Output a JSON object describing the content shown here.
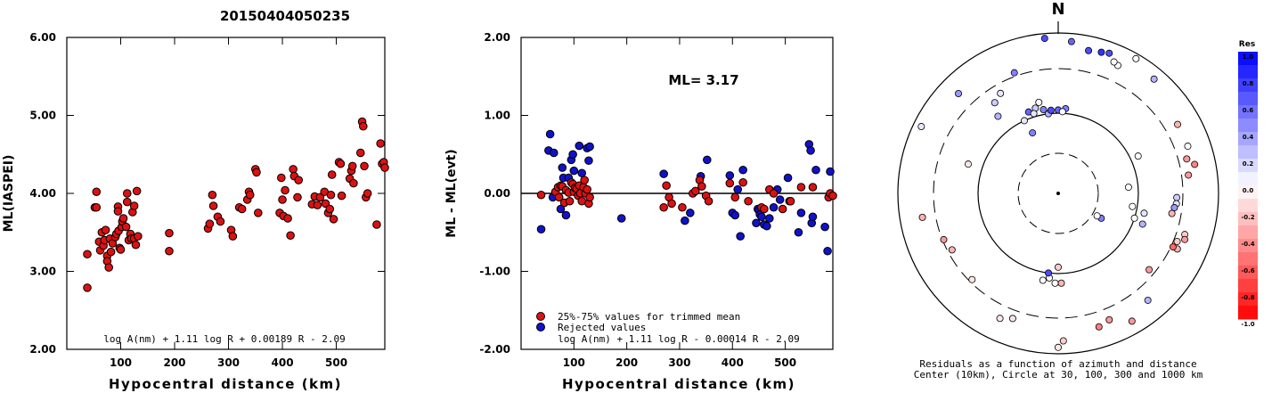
{
  "title": "20150404050235",
  "chart_data": [
    {
      "type": "scatter",
      "xlabel": "Hypocentral distance (km)",
      "ylabel": "ML(IASPEI)",
      "xlim": [
        0,
        590
      ],
      "ylim": [
        2.0,
        6.0
      ],
      "xticks": [
        100,
        200,
        300,
        400,
        500
      ],
      "yticks": [
        "2.00",
        "3.00",
        "4.00",
        "5.00",
        "6.00"
      ],
      "formula": "log A(nm) + 1.11 log R + 0.00189 R - 2.09",
      "color": "#dd1111",
      "points": [
        [
          38,
          2.79
        ],
        [
          38,
          3.22
        ],
        [
          52,
          3.82
        ],
        [
          55,
          4.02
        ],
        [
          55,
          3.82
        ],
        [
          60,
          3.38
        ],
        [
          62,
          3.27
        ],
        [
          65,
          3.5
        ],
        [
          68,
          3.33
        ],
        [
          70,
          3.4
        ],
        [
          72,
          3.53
        ],
        [
          75,
          3.2
        ],
        [
          75,
          3.13
        ],
        [
          78,
          3.05
        ],
        [
          80,
          3.42
        ],
        [
          82,
          3.25
        ],
        [
          85,
          3.36
        ],
        [
          90,
          3.44
        ],
        [
          92,
          3.48
        ],
        [
          95,
          3.83
        ],
        [
          95,
          3.77
        ],
        [
          96,
          3.52
        ],
        [
          98,
          3.3
        ],
        [
          100,
          3.28
        ],
        [
          102,
          3.57
        ],
        [
          103,
          3.64
        ],
        [
          105,
          3.68
        ],
        [
          110,
          3.57
        ],
        [
          112,
          3.89
        ],
        [
          112,
          4.0
        ],
        [
          115,
          3.4
        ],
        [
          118,
          3.48
        ],
        [
          120,
          3.42
        ],
        [
          122,
          3.76
        ],
        [
          125,
          3.84
        ],
        [
          125,
          3.42
        ],
        [
          128,
          3.34
        ],
        [
          130,
          4.03
        ],
        [
          132,
          3.45
        ],
        [
          190,
          3.49
        ],
        [
          190,
          3.26
        ],
        [
          262,
          3.55
        ],
        [
          265,
          3.61
        ],
        [
          270,
          3.98
        ],
        [
          272,
          3.84
        ],
        [
          280,
          3.7
        ],
        [
          285,
          3.64
        ],
        [
          305,
          3.53
        ],
        [
          308,
          3.45
        ],
        [
          320,
          3.82
        ],
        [
          325,
          3.8
        ],
        [
          335,
          3.92
        ],
        [
          338,
          4.02
        ],
        [
          340,
          3.98
        ],
        [
          350,
          4.31
        ],
        [
          352,
          4.27
        ],
        [
          355,
          3.75
        ],
        [
          395,
          3.75
        ],
        [
          398,
          4.2
        ],
        [
          400,
          3.92
        ],
        [
          402,
          3.71
        ],
        [
          405,
          4.04
        ],
        [
          410,
          3.68
        ],
        [
          415,
          3.46
        ],
        [
          420,
          4.31
        ],
        [
          422,
          4.22
        ],
        [
          428,
          3.95
        ],
        [
          430,
          4.17
        ],
        [
          455,
          3.86
        ],
        [
          460,
          3.96
        ],
        [
          465,
          3.85
        ],
        [
          470,
          3.95
        ],
        [
          478,
          4.02
        ],
        [
          480,
          3.87
        ],
        [
          485,
          3.75
        ],
        [
          488,
          3.8
        ],
        [
          490,
          3.98
        ],
        [
          492,
          4.24
        ],
        [
          495,
          3.67
        ],
        [
          505,
          4.4
        ],
        [
          508,
          4.38
        ],
        [
          510,
          3.97
        ],
        [
          525,
          4.19
        ],
        [
          528,
          4.29
        ],
        [
          530,
          4.35
        ],
        [
          532,
          4.13
        ],
        [
          545,
          4.52
        ],
        [
          548,
          4.92
        ],
        [
          550,
          4.86
        ],
        [
          552,
          4.35
        ],
        [
          555,
          3.95
        ],
        [
          558,
          4.0
        ],
        [
          575,
          3.6
        ],
        [
          582,
          4.64
        ],
        [
          585,
          4.38
        ],
        [
          588,
          4.4
        ],
        [
          590,
          4.33
        ]
      ]
    },
    {
      "type": "scatter",
      "xlabel": "Hypocentral distance (km)",
      "ylabel": "ML - ML(evt)",
      "xlim": [
        0,
        590
      ],
      "ylim": [
        -2.0,
        2.0
      ],
      "xticks": [
        100,
        200,
        300,
        400,
        500
      ],
      "yticks": [
        "-2.00",
        "-1.00",
        "0.00",
        "1.00",
        "2.00"
      ],
      "annotation": "ML= 3.17",
      "formula": "log A(nm) + 1.11 log R - 0.00014 R - 2.09",
      "legend": [
        "25%-75% values for trimmed mean",
        "Rejected values"
      ],
      "legend_position": "bottom-left",
      "colors": {
        "trimmed": "#dd1111",
        "rejected": "#1111cc"
      },
      "trimmed": [
        [
          38,
          -0.02
        ],
        [
          65,
          0.02
        ],
        [
          70,
          0.08
        ],
        [
          72,
          -0.05
        ],
        [
          75,
          0.1
        ],
        [
          78,
          0.09
        ],
        [
          82,
          -0.12
        ],
        [
          85,
          0.04
        ],
        [
          90,
          0.01
        ],
        [
          92,
          -0.1
        ],
        [
          95,
          0.14
        ],
        [
          98,
          0.12
        ],
        [
          100,
          0.02
        ],
        [
          102,
          0.07
        ],
        [
          105,
          0.06
        ],
        [
          108,
          -0.03
        ],
        [
          110,
          0.1
        ],
        [
          112,
          0.0
        ],
        [
          115,
          -0.1
        ],
        [
          118,
          0.08
        ],
        [
          120,
          0.17
        ],
        [
          122,
          0.0
        ],
        [
          125,
          0.05
        ],
        [
          128,
          -0.13
        ],
        [
          130,
          -0.05
        ],
        [
          270,
          -0.18
        ],
        [
          275,
          0.1
        ],
        [
          280,
          -0.05
        ],
        [
          285,
          -0.13
        ],
        [
          305,
          -0.18
        ],
        [
          325,
          0.0
        ],
        [
          330,
          0.03
        ],
        [
          338,
          0.17
        ],
        [
          342,
          0.09
        ],
        [
          350,
          -0.03
        ],
        [
          355,
          -0.1
        ],
        [
          395,
          0.13
        ],
        [
          405,
          -0.05
        ],
        [
          420,
          0.14
        ],
        [
          430,
          -0.1
        ],
        [
          455,
          -0.18
        ],
        [
          460,
          -0.2
        ],
        [
          470,
          0.05
        ],
        [
          478,
          0.0
        ],
        [
          495,
          -0.2
        ],
        [
          510,
          -0.1
        ],
        [
          530,
          0.08
        ],
        [
          552,
          0.08
        ],
        [
          582,
          -0.05
        ],
        [
          585,
          0.0
        ],
        [
          590,
          -0.03
        ]
      ],
      "rejected": [
        [
          38,
          -0.46
        ],
        [
          52,
          0.55
        ],
        [
          55,
          0.76
        ],
        [
          60,
          -0.05
        ],
        [
          62,
          0.52
        ],
        [
          75,
          -0.2
        ],
        [
          78,
          0.33
        ],
        [
          80,
          0.2
        ],
        [
          85,
          -0.28
        ],
        [
          90,
          0.2
        ],
        [
          95,
          0.43
        ],
        [
          98,
          0.5
        ],
        [
          100,
          0.29
        ],
        [
          110,
          0.61
        ],
        [
          115,
          0.26
        ],
        [
          125,
          0.58
        ],
        [
          128,
          0.42
        ],
        [
          130,
          0.6
        ],
        [
          190,
          -0.32
        ],
        [
          270,
          0.25
        ],
        [
          310,
          -0.35
        ],
        [
          320,
          -0.25
        ],
        [
          340,
          0.22
        ],
        [
          352,
          0.43
        ],
        [
          395,
          0.23
        ],
        [
          400,
          -0.25
        ],
        [
          405,
          -0.28
        ],
        [
          410,
          0.05
        ],
        [
          415,
          -0.55
        ],
        [
          420,
          0.3
        ],
        [
          445,
          -0.38
        ],
        [
          448,
          -0.2
        ],
        [
          450,
          -0.22
        ],
        [
          452,
          -0.27
        ],
        [
          455,
          -0.3
        ],
        [
          460,
          -0.4
        ],
        [
          465,
          -0.42
        ],
        [
          470,
          -0.32
        ],
        [
          478,
          -0.18
        ],
        [
          485,
          0.05
        ],
        [
          490,
          -0.08
        ],
        [
          505,
          0.2
        ],
        [
          508,
          -0.1
        ],
        [
          525,
          -0.5
        ],
        [
          530,
          -0.25
        ],
        [
          545,
          0.63
        ],
        [
          548,
          0.55
        ],
        [
          550,
          -0.38
        ],
        [
          552,
          -0.3
        ],
        [
          558,
          0.3
        ],
        [
          575,
          -0.43
        ],
        [
          580,
          -0.74
        ],
        [
          585,
          0.28
        ]
      ]
    },
    {
      "type": "polar-scatter",
      "north_label": "N",
      "caption_line1": "Residuals as a function of azimuth and distance",
      "caption_line2": "Center (10km), Circle at 30, 100, 300 and 1000 km",
      "colorbar_title": "Res",
      "colorbar_ticks": [
        "1.0",
        "0.8",
        "0.6",
        "0.4",
        "0.2",
        "0.0",
        "-0.2",
        "-0.4",
        "-0.6",
        "-0.8",
        "-1.0"
      ],
      "points": [
        [
          5,
          0.95,
          0.6
        ],
        [
          12,
          0.91,
          0.7
        ],
        [
          17,
          0.92,
          0.8
        ],
        [
          25,
          0.88,
          0.0
        ],
        [
          23,
          0.89,
          0.0
        ],
        [
          40,
          0.93,
          0.3
        ],
        [
          60,
          0.86,
          -0.3
        ],
        [
          75,
          0.83,
          -0.4
        ],
        [
          78,
          0.87,
          -0.5
        ],
        [
          82,
          0.82,
          -0.4
        ],
        [
          70,
          0.86,
          0.0
        ],
        [
          92,
          0.74,
          0.2
        ],
        [
          95,
          0.74,
          0.1
        ],
        [
          100,
          0.72,
          -0.3
        ],
        [
          108,
          0.83,
          -0.2
        ],
        [
          110,
          0.84,
          -0.4
        ],
        [
          112,
          0.8,
          -0.2
        ],
        [
          115,
          0.82,
          -0.3
        ],
        [
          130,
          0.74,
          -0.4
        ],
        [
          140,
          0.87,
          0.3
        ],
        [
          150,
          0.92,
          -0.4
        ],
        [
          158,
          0.85,
          -0.4
        ],
        [
          163,
          0.87,
          -0.5
        ],
        [
          178,
          0.92,
          -0.2
        ],
        [
          180,
          0.96,
          -0.1
        ],
        [
          178,
          0.56,
          -0.3
        ],
        [
          182,
          0.56,
          0.0
        ],
        [
          186,
          0.53,
          0.0
        ],
        [
          190,
          0.55,
          0.0
        ],
        [
          187,
          0.5,
          0.7
        ],
        [
          180,
          0.46,
          -0.2
        ],
        [
          200,
          0.83,
          -0.1
        ],
        [
          205,
          0.86,
          -0.1
        ],
        [
          225,
          0.76,
          -0.1
        ],
        [
          242,
          0.75,
          -0.3
        ],
        [
          248,
          0.77,
          -0.4
        ],
        [
          260,
          0.86,
          -0.3
        ],
        [
          288,
          0.59,
          -0.1
        ],
        [
          296,
          0.95,
          0.1
        ],
        [
          315,
          0.88,
          0.4
        ],
        [
          325,
          0.69,
          0.2
        ],
        [
          330,
          0.72,
          0.1
        ],
        [
          322,
          0.61,
          0.3
        ],
        [
          340,
          0.54,
          0.6
        ],
        [
          345,
          0.55,
          0.2
        ],
        [
          350,
          0.53,
          0.5
        ],
        [
          353,
          0.5,
          0.3
        ],
        [
          5,
          0.53,
          0.5
        ],
        [
          0,
          0.52,
          0.6
        ],
        [
          3,
          0.51,
          0.0
        ],
        [
          343,
          0.52,
          0.1
        ],
        [
          355,
          0.52,
          0.7
        ],
        [
          348,
          0.58,
          0.0
        ],
        [
          335,
          0.5,
          0.1
        ],
        [
          337,
          0.41,
          0.5
        ],
        [
          355,
          0.97,
          0.7
        ],
        [
          340,
          0.8,
          0.5
        ],
        [
          103,
          0.55,
          0.1
        ],
        [
          110,
          0.56,
          0.3
        ],
        [
          100,
          0.47,
          0.0
        ],
        [
          108,
          0.5,
          0.0
        ],
        [
          120,
          0.31,
          0.5
        ],
        [
          65,
          0.55,
          0.0
        ],
        [
          85,
          0.44,
          0.0
        ],
        [
          120,
          0.28,
          0.0
        ],
        [
          20,
          0.93,
          0.7
        ],
        [
          30,
          0.97,
          0.0
        ],
        [
          97,
          0.73,
          0.4
        ],
        [
          115,
          0.79,
          -0.6
        ]
      ]
    }
  ]
}
